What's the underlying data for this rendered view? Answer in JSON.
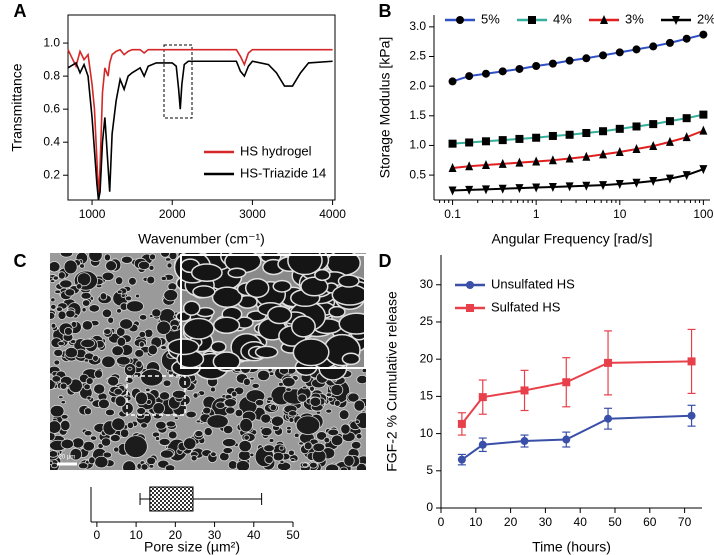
{
  "chart_data": [
    {
      "panel": "A",
      "type": "line",
      "x_label": "Wavenumber (cm⁻¹)",
      "y_label": "Transmittance",
      "x": [
        700,
        800,
        850,
        900,
        950,
        1000,
        1030,
        1060,
        1080,
        1100,
        1130,
        1160,
        1200,
        1220,
        1250,
        1300,
        1350,
        1400,
        1450,
        1500,
        1600,
        1650,
        1700,
        1800,
        1900,
        2000,
        2050,
        2080,
        2100,
        2120,
        2150,
        2200,
        2300,
        2500,
        2800,
        2850,
        2900,
        2950,
        3000,
        3200,
        3300,
        3400,
        3500,
        3600,
        3700,
        4000
      ],
      "series": [
        {
          "name": "HS hydrogel",
          "color": "#d62728",
          "values": [
            0.96,
            0.86,
            0.95,
            0.9,
            0.93,
            0.75,
            0.6,
            0.3,
            0.06,
            0.25,
            0.7,
            0.85,
            0.8,
            0.88,
            0.93,
            0.95,
            0.96,
            0.93,
            0.95,
            0.96,
            0.96,
            0.94,
            0.96,
            0.96,
            0.96,
            0.96,
            0.96,
            0.96,
            0.96,
            0.96,
            0.96,
            0.96,
            0.96,
            0.96,
            0.96,
            0.92,
            0.87,
            0.94,
            0.96,
            0.96,
            0.96,
            0.96,
            0.96,
            0.96,
            0.96,
            0.96
          ]
        },
        {
          "name": "HS-Triazide 14",
          "color": "#000000",
          "values": [
            0.85,
            0.88,
            0.82,
            0.87,
            0.8,
            0.55,
            0.35,
            0.15,
            0.05,
            0.1,
            0.4,
            0.55,
            0.25,
            0.1,
            0.45,
            0.65,
            0.78,
            0.72,
            0.8,
            0.82,
            0.85,
            0.8,
            0.86,
            0.88,
            0.88,
            0.88,
            0.86,
            0.72,
            0.6,
            0.75,
            0.87,
            0.89,
            0.89,
            0.89,
            0.89,
            0.83,
            0.8,
            0.86,
            0.89,
            0.87,
            0.82,
            0.74,
            0.74,
            0.82,
            0.88,
            0.89
          ]
        }
      ],
      "xlim": [
        700,
        4030
      ],
      "ylim": [
        0.05,
        1.17
      ],
      "xticks": [
        1000,
        2000,
        3000,
        4000
      ],
      "yticks": [
        0.2,
        0.4,
        0.6,
        0.8,
        {
          "value": 1,
          "label": "1.0"
        }
      ],
      "legend": "lower right",
      "frame": true
    },
    {
      "panel": "B",
      "type": "line",
      "x_label": "Angular Frequency [rad/s]",
      "y_label": "Storage Modulus [kPa]",
      "x_log": true,
      "x": [
        0.1,
        0.158,
        0.251,
        0.398,
        0.631,
        1,
        1.585,
        2.512,
        3.981,
        6.31,
        10,
        15.85,
        25.12,
        39.81,
        63.1,
        100
      ],
      "series": [
        {
          "name": "5%",
          "color": "#3050c8",
          "marker": "circle",
          "marker_color": "#000000",
          "values": [
            2.08,
            2.17,
            2.21,
            2.25,
            2.29,
            2.34,
            2.38,
            2.43,
            2.47,
            2.52,
            2.57,
            2.62,
            2.67,
            2.73,
            2.8,
            2.87
          ]
        },
        {
          "name": "4%",
          "color": "#36b09a",
          "marker": "square",
          "marker_color": "#000000",
          "values": [
            1.03,
            1.05,
            1.07,
            1.09,
            1.11,
            1.13,
            1.16,
            1.18,
            1.21,
            1.24,
            1.28,
            1.32,
            1.36,
            1.41,
            1.46,
            1.52
          ]
        },
        {
          "name": "3%",
          "color": "#e02020",
          "marker": "triangle-up",
          "marker_color": "#000000",
          "values": [
            0.62,
            0.65,
            0.67,
            0.69,
            0.71,
            0.73,
            0.75,
            0.78,
            0.81,
            0.85,
            0.89,
            0.94,
            0.99,
            1.06,
            1.14,
            1.25
          ]
        },
        {
          "name": "2%",
          "color": "#000000",
          "marker": "triangle-down",
          "marker_color": "#000000",
          "values": [
            0.24,
            0.25,
            0.26,
            0.27,
            0.28,
            0.29,
            0.3,
            0.31,
            0.32,
            0.33,
            0.35,
            0.37,
            0.4,
            0.44,
            0.5,
            0.6
          ]
        }
      ],
      "xlim": [
        0.06,
        120
      ],
      "ylim": [
        0.08,
        3.2
      ],
      "xticks": [
        0.1,
        1,
        10,
        100
      ],
      "yticks": [
        0.5,
        {
          "value": 1,
          "label": "1.0"
        },
        1.5,
        {
          "value": 2,
          "label": "2.0"
        },
        2.5,
        {
          "value": 3,
          "label": "3.0"
        }
      ],
      "legend": "top"
    },
    {
      "panel": "C",
      "type": "box",
      "x_label": "Pore size (µm²)",
      "scale_bar": "20 µm",
      "xlim": [
        -1.5,
        50
      ],
      "xticks": [
        0,
        10,
        20,
        30,
        40,
        50
      ],
      "whislo": 11,
      "q1": 13.5,
      "q3": 24.5,
      "whishi": 42
    },
    {
      "panel": "D",
      "type": "line",
      "x_label": "Time (hours)",
      "y_label": "FGF-2 % Cumulative release",
      "x": [
        6,
        12,
        24,
        36,
        48,
        72
      ],
      "series": [
        {
          "name": "Unsulfated HS",
          "color": "#3a4fa8",
          "marker": "circle",
          "values": [
            6.5,
            8.5,
            9.0,
            9.2,
            12.0,
            12.4
          ],
          "errors": [
            0.7,
            0.9,
            0.8,
            1.0,
            1.4,
            1.4
          ]
        },
        {
          "name": "Sulfated HS",
          "color": "#e8404a",
          "marker": "square",
          "values": [
            11.3,
            14.9,
            15.8,
            16.9,
            19.5,
            19.7
          ],
          "errors": [
            1.5,
            2.3,
            2.7,
            3.3,
            4.3,
            4.3
          ]
        }
      ],
      "xlim": [
        0,
        75
      ],
      "ylim": [
        0,
        34
      ],
      "xticks": [
        0,
        10,
        20,
        30,
        40,
        50,
        60,
        70
      ],
      "yticks": [
        0,
        5,
        10,
        15,
        20,
        25,
        30
      ],
      "legend": "upper left"
    }
  ]
}
